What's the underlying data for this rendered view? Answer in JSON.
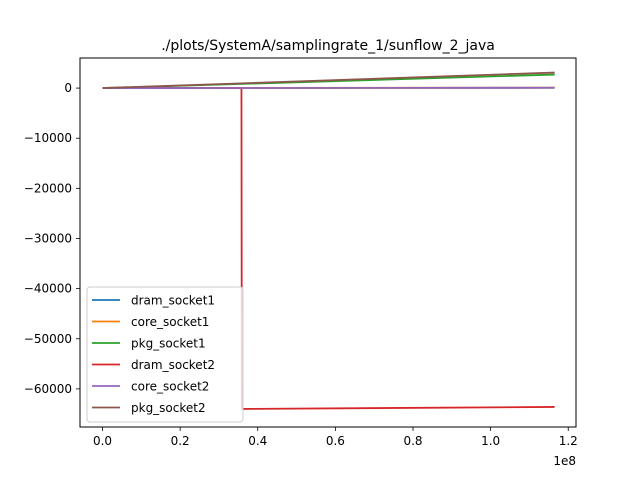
{
  "chart_data": {
    "type": "line",
    "title": "./plots/SystemA/samplingrate_1/sunflow_2_java",
    "xlabel": "",
    "ylabel": "",
    "x_offset_label": "1e8",
    "xlim": [
      -0.058,
      1.22
    ],
    "ylim": [
      -67600,
      6000
    ],
    "x_ticks": [
      0.0,
      0.2,
      0.4,
      0.6,
      0.8,
      1.0,
      1.2
    ],
    "x_tick_labels": [
      "0.0",
      "0.2",
      "0.4",
      "0.6",
      "0.8",
      "1.0",
      "1.2"
    ],
    "y_ticks": [
      0,
      -10000,
      -20000,
      -30000,
      -40000,
      -50000,
      -60000
    ],
    "y_tick_labels": [
      "0",
      "−10000",
      "−20000",
      "−30000",
      "−40000",
      "−50000",
      "−60000"
    ],
    "grid": false,
    "legend_position": "lower-left",
    "series": [
      {
        "name": "dram_socket1",
        "color": "#1f77b4",
        "points": [
          [
            0.0,
            0
          ],
          [
            1.165,
            60
          ]
        ]
      },
      {
        "name": "core_socket1",
        "color": "#ff7f0e",
        "points": [
          [
            0.0,
            0
          ],
          [
            1.165,
            80
          ]
        ]
      },
      {
        "name": "pkg_socket1",
        "color": "#2ca02c",
        "points": [
          [
            0.0,
            0
          ],
          [
            1.165,
            2700
          ]
        ]
      },
      {
        "name": "dram_socket2",
        "color": "#d62728",
        "points": [
          [
            0.0,
            0
          ],
          [
            0.358,
            0
          ],
          [
            0.359,
            -64000
          ],
          [
            1.165,
            -63600
          ]
        ]
      },
      {
        "name": "core_socket2",
        "color": "#9467bd",
        "points": [
          [
            0.0,
            0
          ],
          [
            1.165,
            60
          ]
        ]
      },
      {
        "name": "pkg_socket2",
        "color": "#8c564b",
        "points": [
          [
            0.0,
            0
          ],
          [
            1.165,
            3100
          ]
        ]
      }
    ]
  }
}
